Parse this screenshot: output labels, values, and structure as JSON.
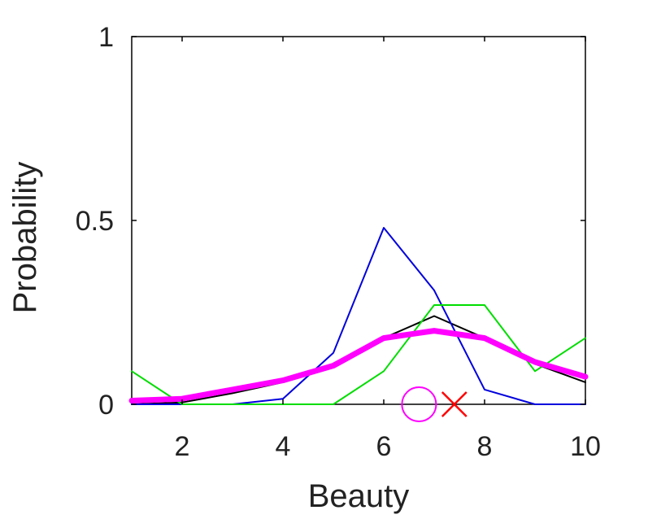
{
  "chart_data": {
    "type": "line",
    "title": "",
    "xlabel": "Beauty",
    "ylabel": "Probability",
    "xlim": [
      1,
      10
    ],
    "ylim": [
      0,
      1
    ],
    "xticks": [
      2,
      4,
      6,
      8,
      10
    ],
    "xtick_labels": [
      "2",
      "4",
      "6",
      "8",
      "10"
    ],
    "yticks": [
      0,
      0.5,
      1
    ],
    "ytick_labels": [
      "0",
      "0.5",
      "1"
    ],
    "grid": false,
    "legend": "none",
    "x": [
      1,
      2,
      3,
      4,
      5,
      6,
      7,
      8,
      9,
      10
    ],
    "series": [
      {
        "color": "#000000",
        "weight": "thin",
        "values": [
          0.0,
          0.005,
          0.03,
          0.06,
          0.1,
          0.18,
          0.24,
          0.18,
          0.11,
          0.06
        ]
      },
      {
        "color": "#0000dd",
        "weight": "thin",
        "values": [
          0.0,
          0.0,
          0.0,
          0.015,
          0.14,
          0.48,
          0.31,
          0.04,
          0.0,
          0.0
        ]
      },
      {
        "color": "#00dd00",
        "weight": "thin",
        "values": [
          0.09,
          0.0,
          0.0,
          0.0,
          0.0,
          0.09,
          0.27,
          0.27,
          0.09,
          0.18
        ]
      },
      {
        "color": "#ff00ff",
        "weight": "thick",
        "values": [
          0.01,
          0.015,
          0.04,
          0.065,
          0.105,
          0.18,
          0.2,
          0.18,
          0.115,
          0.075
        ]
      }
    ],
    "markers": [
      {
        "kind": "circle",
        "color": "#ff00ff",
        "x": 6.7,
        "y": 0.0
      },
      {
        "kind": "cross",
        "color": "#ff0000",
        "x": 7.4,
        "y": 0.0
      }
    ]
  }
}
